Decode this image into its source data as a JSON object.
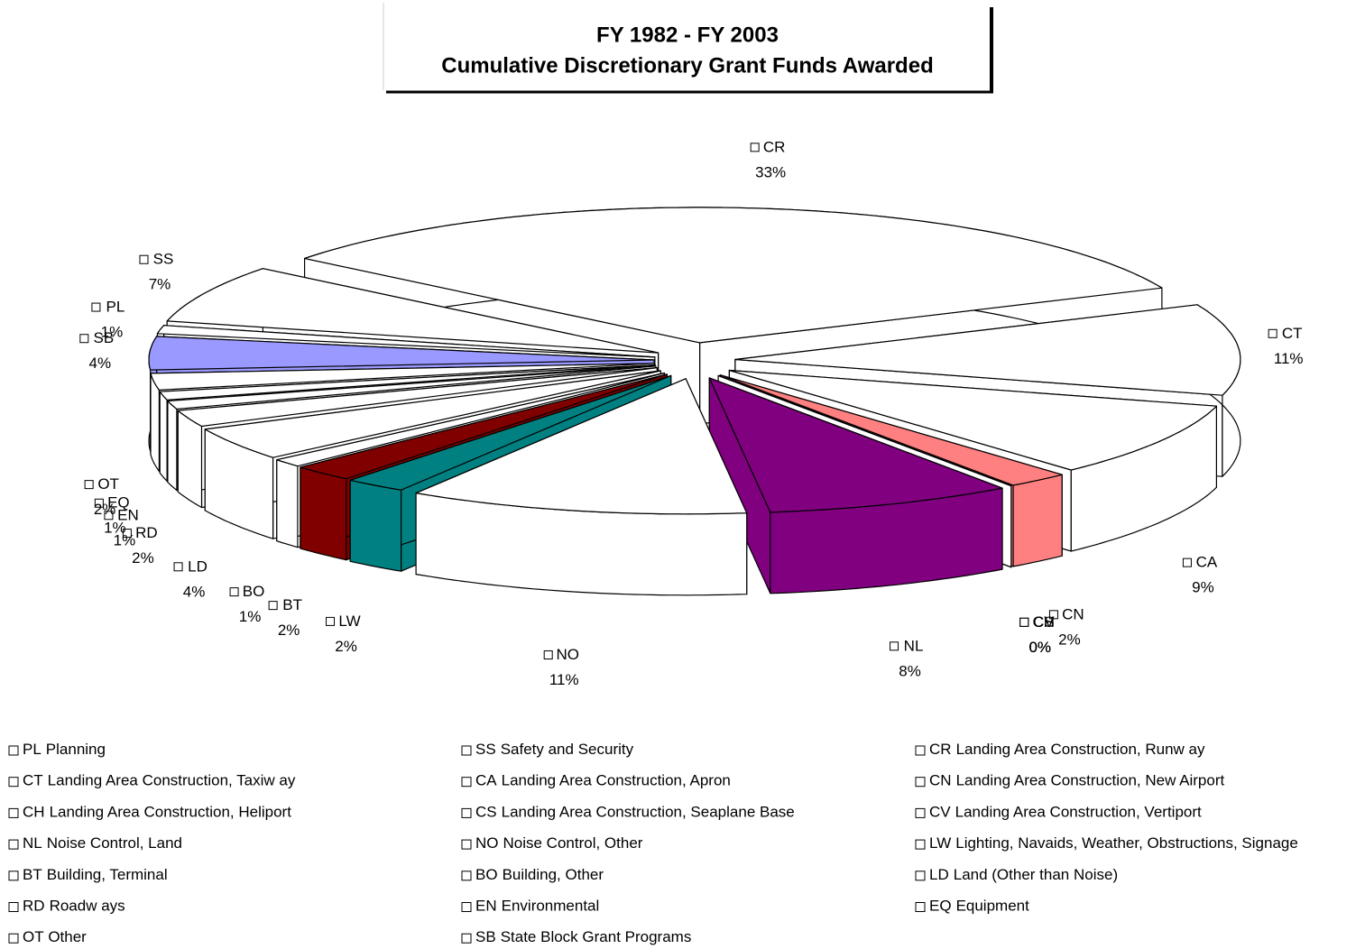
{
  "chart_data": {
    "type": "pie3d",
    "title": "FY 1982 - FY 2003",
    "subtitle": "Cumulative Discretionary Grant Funds Awarded",
    "categories": [
      "PL",
      "SS",
      "CR",
      "CT",
      "CA",
      "CN",
      "CH",
      "CS",
      "CV",
      "NL",
      "NO",
      "LW",
      "BT",
      "BO",
      "LD",
      "RD",
      "EN",
      "EQ",
      "OT",
      "SB"
    ],
    "descriptions": [
      "Planning",
      "Safety and Security",
      "Landing Area Construction, Runw ay",
      "Landing Area Construction, Taxiw ay",
      "Landing Area Construction, Apron",
      "Landing Area Construction, New  Airport",
      "Landing Area Construction, Heliport",
      "Landing Area Construction, Seaplane Base",
      "Landing Area Construction, Vertiport",
      "Noise Control, Land",
      "Noise Control, Other",
      "Lighting, Navaids, Weather, Obstructions, Signage",
      "Building, Terminal",
      "Building, Other",
      "Land (Other than Noise)",
      "Roadw ays",
      "Environmental",
      "Equipment",
      "Other",
      "State Block Grant Programs"
    ],
    "values": [
      1,
      7,
      33,
      11,
      9,
      2,
      0,
      0,
      0,
      8,
      11,
      2,
      2,
      1,
      4,
      2,
      1,
      1,
      2,
      4
    ],
    "value_labels": [
      "1%",
      "7%",
      "33%",
      "11%",
      "9%",
      "2%",
      "0%",
      "0%",
      "0%",
      "8%",
      "11%",
      "2%",
      "2%",
      "1%",
      "4%",
      "2%",
      "1%",
      "1%",
      "2%",
      "4%"
    ],
    "colors": [
      "#ffffff",
      "#ffffff",
      "#ffffff",
      "#ffffff",
      "#ffffff",
      "#ff8080",
      "#ffffff",
      "#ffffff",
      "#ffffff",
      "#800080",
      "#ffffff",
      "#008080",
      "#800000",
      "#ffffff",
      "#ffffff",
      "#ffffff",
      "#ffffff",
      "#ffffff",
      "#ffffff",
      "#9999ff"
    ],
    "legend": "bottom"
  }
}
